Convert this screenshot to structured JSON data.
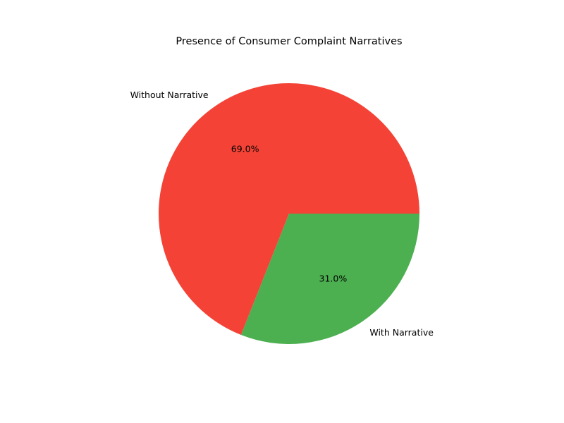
{
  "chart_data": {
    "type": "pie",
    "title": "Presence of Consumer Complaint Narratives",
    "slices": [
      {
        "label": "Without Narrative",
        "value": 69.0,
        "pct_label": "69.0%",
        "color": "#f44336"
      },
      {
        "label": "With Narrative",
        "value": 31.0,
        "pct_label": "31.0%",
        "color": "#4caf50"
      }
    ],
    "start_angle_deg": 0,
    "direction": "counterclockwise",
    "legend": "none"
  }
}
